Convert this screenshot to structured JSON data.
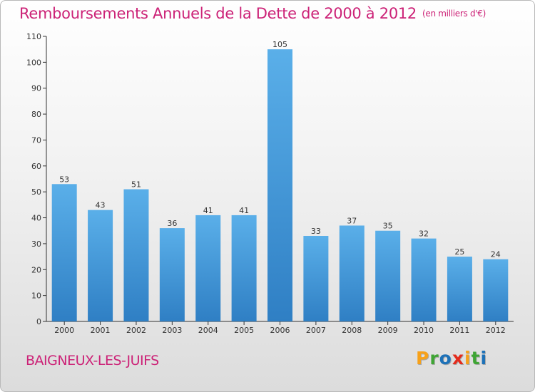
{
  "chart_data": {
    "type": "bar",
    "title": "Remboursements Annuels de la Dette de 2000 à 2012",
    "subtitle": "(en milliers d'€)",
    "categories": [
      "2000",
      "2001",
      "2002",
      "2003",
      "2004",
      "2005",
      "2006",
      "2007",
      "2008",
      "2009",
      "2010",
      "2011",
      "2012"
    ],
    "values": [
      53,
      43,
      51,
      36,
      41,
      41,
      105,
      33,
      37,
      35,
      32,
      25,
      24
    ],
    "ylim": [
      0,
      110
    ],
    "yticks": [
      0,
      10,
      20,
      30,
      40,
      50,
      60,
      70,
      80,
      90,
      100,
      110
    ],
    "xlabel": "",
    "ylabel": "",
    "grid": false,
    "bar_color": "#4a9ee0"
  },
  "footer": {
    "city": "BAIGNEUX-LES-JUIFS",
    "logo": [
      "P",
      "r",
      "o",
      "x",
      "i",
      "t",
      "i"
    ],
    "logo_colors": [
      "#f7a11a",
      "#3fa535",
      "#1d71b8",
      "#e42b1c",
      "#f7a11a",
      "#3fa535",
      "#1d71b8"
    ]
  }
}
